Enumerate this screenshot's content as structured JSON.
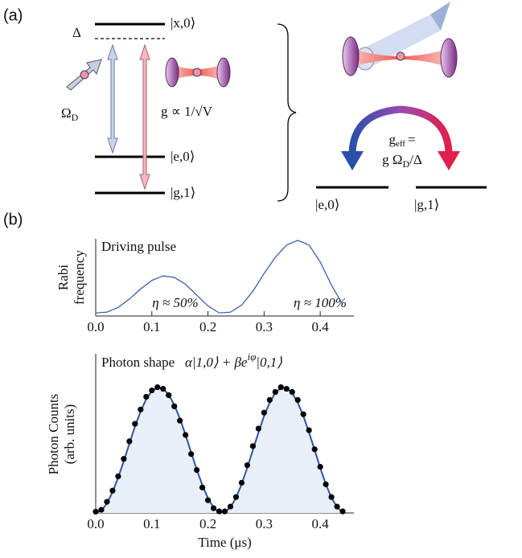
{
  "diagram": {
    "panel_labels": [
      "(a)",
      "(b)"
    ],
    "levels": {
      "x0": "|x,0⟩",
      "e0": "|e,0⟩",
      "g1": "|g,1⟩"
    },
    "detuning": "Δ",
    "drive": {
      "symbol": "Ω",
      "sub": "D"
    },
    "coupling": "g ∝ 1/√V",
    "effective": {
      "symbol": "g",
      "sub": "eff",
      "eq": "=",
      "expr_pre": "g Ω",
      "expr_sub": "D",
      "expr_post": "/Δ"
    },
    "right_levels": [
      "|e,0⟩",
      "|g,1⟩"
    ]
  },
  "chart_data": [
    {
      "type": "line",
      "title": "Driving pulse",
      "ylabel": [
        "Rabi",
        "frequency"
      ],
      "annotations": [
        "η ≈ 50%",
        "η ≈ 100%"
      ],
      "annotation_color": "#2a55a8",
      "x": [
        0,
        0.02,
        0.04,
        0.06,
        0.08,
        0.1,
        0.12,
        0.14,
        0.16,
        0.18,
        0.2,
        0.22,
        0.24,
        0.26,
        0.28,
        0.3,
        0.32,
        0.34,
        0.36,
        0.38,
        0.4,
        0.42,
        0.44
      ],
      "series": [
        {
          "kind": "line",
          "color": "#2a55a8",
          "values": [
            0.04,
            0.05,
            0.11,
            0.22,
            0.35,
            0.46,
            0.52,
            0.5,
            0.41,
            0.27,
            0.13,
            0.04,
            0.05,
            0.14,
            0.32,
            0.55,
            0.76,
            0.92,
            0.98,
            0.92,
            0.7,
            0.4,
            0.15
          ]
        }
      ],
      "xlim": [
        0,
        0.46
      ],
      "ylim": [
        0,
        1
      ],
      "xticks": [
        {
          "value": 0,
          "label": "0.0"
        },
        0.1,
        0.2,
        0.3,
        0.4
      ]
    },
    {
      "type": "line",
      "title": "Photon shape",
      "formula": {
        "pre": "α|1,0⟩ + βe",
        "sup": "iφ",
        "post": "|0,1⟩"
      },
      "ylabel": [
        "Photon Counts",
        "(arb. units)"
      ],
      "xlabel": "Time (μs)",
      "x": [
        0,
        0.01,
        0.02,
        0.03,
        0.04,
        0.05,
        0.06,
        0.07,
        0.08,
        0.09,
        0.1,
        0.11,
        0.12,
        0.13,
        0.14,
        0.15,
        0.16,
        0.17,
        0.18,
        0.19,
        0.2,
        0.21,
        0.22,
        0.23,
        0.24,
        0.25,
        0.26,
        0.27,
        0.28,
        0.29,
        0.3,
        0.31,
        0.32,
        0.33,
        0.34,
        0.35,
        0.36,
        0.37,
        0.38,
        0.39,
        0.4,
        0.41,
        0.42,
        0.43,
        0.44
      ],
      "series": [
        {
          "kind": "area-line",
          "color": "#2a55a8",
          "fill": "#e9eff7",
          "values": [
            0,
            0.015,
            0.06,
            0.131,
            0.222,
            0.326,
            0.436,
            0.543,
            0.638,
            0.715,
            0.766,
            0.789,
            0.781,
            0.744,
            0.679,
            0.593,
            0.491,
            0.381,
            0.273,
            0.174,
            0.092,
            0.034,
            0.004,
            0.004,
            0.036,
            0.096,
            0.181,
            0.284,
            0.395,
            0.506,
            0.609,
            0.693,
            0.754,
            0.786,
            0.786,
            0.754,
            0.693,
            0.609,
            0.506,
            0.395,
            0.284,
            0.181,
            0.096,
            0.036,
            0.004
          ]
        },
        {
          "kind": "scatter",
          "color": "#000000",
          "values": [
            0.008,
            0.02,
            0.07,
            0.14,
            0.23,
            0.34,
            0.45,
            0.56,
            0.65,
            0.73,
            0.77,
            0.79,
            0.78,
            0.74,
            0.67,
            0.58,
            0.49,
            0.37,
            0.27,
            0.16,
            0.08,
            0.03,
            0.01,
            0.01,
            0.04,
            0.1,
            0.19,
            0.3,
            0.42,
            0.53,
            0.63,
            0.71,
            0.76,
            0.79,
            0.78,
            0.76,
            0.71,
            0.62,
            0.52,
            0.4,
            0.29,
            0.18,
            0.1,
            0.04,
            0.01
          ]
        }
      ],
      "xlim": [
        0,
        0.46
      ],
      "ylim": [
        0,
        1
      ],
      "xticks": [
        {
          "value": 0,
          "label": "0.0"
        },
        0.1,
        0.2,
        0.3,
        0.4
      ]
    }
  ]
}
